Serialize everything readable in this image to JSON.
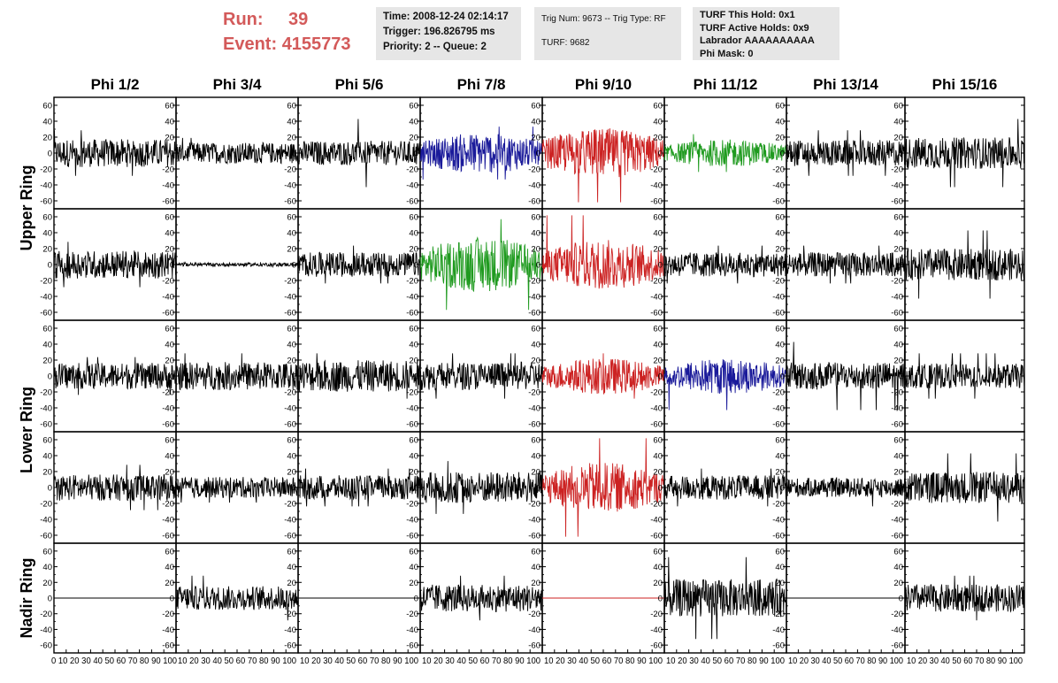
{
  "header": {
    "run_label": "Run:",
    "run_value": "39",
    "event_label": "Event:",
    "event_value": "4155773",
    "time": "Time: 2008-12-24 02:14:17",
    "trigger": "Trigger: 196.826795 ms",
    "priority": "Priority: 2 -- Queue: 2",
    "trig_num": "Trig Num: 9673 -- Trig Type: RF",
    "turf": "TURF: 9682",
    "turf_this_hold": "TURF This Hold: 0x1",
    "turf_active_holds": "TURF Active Holds: 0x9",
    "labrador": "Labrador AAAAAAAAAA",
    "phi_mask": "Phi Mask: 0"
  },
  "colors": {
    "run_text": "#d35a5a",
    "info_bg": "#e6e6e6",
    "black": "#000000",
    "red": "#cc2222",
    "blue": "#1a1a9a",
    "green": "#1e9a1e"
  },
  "chart_data": {
    "type": "line",
    "columns": [
      "Phi 1/2",
      "Phi 3/4",
      "Phi 5/6",
      "Phi 7/8",
      "Phi 9/10",
      "Phi 11/12",
      "Phi 13/14",
      "Phi 15/16"
    ],
    "rows": [
      "Upper Ring",
      "Upper Ring",
      "Lower Ring",
      "Lower Ring",
      "Nadir Ring"
    ],
    "ring_labels": [
      "Upper Ring",
      "Lower Ring",
      "Nadir Ring"
    ],
    "ylim": [
      -70,
      70
    ],
    "yticks": [
      -60,
      -40,
      -20,
      0,
      20,
      40,
      60
    ],
    "xlim": [
      0,
      100
    ],
    "xticks": [
      0,
      10,
      20,
      30,
      40,
      50,
      60,
      70,
      80,
      90,
      100
    ],
    "x_tick_strip": [
      "0 10 20 30 40 50 60 70 80 90 100",
      "10 20 30 40 50 60 70 80 90 100",
      "10 20 30 40 50 60 70 80 90 100",
      "10 20 30 40 50 60 70 80 90 100",
      "10 20 30 40 50 60 70 80 90 100",
      "10 20 30 40 50 60 70 80 90 100",
      "10 20 30 40 50 60 70 80 90 100",
      "10 20 30 40 50 60 70 80 90 100"
    ],
    "panels": [
      [
        {
          "color": "black",
          "amp": 16,
          "peak": 30
        },
        {
          "color": "black",
          "amp": 12,
          "peak": 20
        },
        {
          "color": "black",
          "amp": 14,
          "peak": 45
        },
        {
          "color": "blue",
          "amp": 18,
          "peak": 35
        },
        {
          "color": "red",
          "amp": 22,
          "peak": 65
        },
        {
          "color": "green",
          "amp": 12,
          "peak": 25
        },
        {
          "color": "black",
          "amp": 15,
          "peak": 30
        },
        {
          "color": "black",
          "amp": 18,
          "peak": 45
        }
      ],
      [
        {
          "color": "black",
          "amp": 16,
          "peak": 30
        },
        {
          "color": "black",
          "amp": 2,
          "peak": 3
        },
        {
          "color": "black",
          "amp": 14,
          "peak": 25
        },
        {
          "color": "green",
          "amp": 24,
          "peak": 60
        },
        {
          "color": "red",
          "amp": 22,
          "peak": 65
        },
        {
          "color": "black",
          "amp": 14,
          "peak": 25
        },
        {
          "color": "black",
          "amp": 14,
          "peak": 25
        },
        {
          "color": "black",
          "amp": 18,
          "peak": 45
        }
      ],
      [
        {
          "color": "black",
          "amp": 15,
          "peak": 25
        },
        {
          "color": "black",
          "amp": 16,
          "peak": 30
        },
        {
          "color": "black",
          "amp": 18,
          "peak": 30
        },
        {
          "color": "black",
          "amp": 16,
          "peak": 30
        },
        {
          "color": "red",
          "amp": 16,
          "peak": 30
        },
        {
          "color": "blue",
          "amp": 16,
          "peak": 45
        },
        {
          "color": "black",
          "amp": 16,
          "peak": 45
        },
        {
          "color": "black",
          "amp": 14,
          "peak": 30
        }
      ],
      [
        {
          "color": "black",
          "amp": 15,
          "peak": 30
        },
        {
          "color": "black",
          "amp": 12,
          "peak": 20
        },
        {
          "color": "black",
          "amp": 14,
          "peak": 25
        },
        {
          "color": "black",
          "amp": 18,
          "peak": 35
        },
        {
          "color": "red",
          "amp": 22,
          "peak": 65
        },
        {
          "color": "black",
          "amp": 14,
          "peak": 25
        },
        {
          "color": "black",
          "amp": 11,
          "peak": 25
        },
        {
          "color": "black",
          "amp": 18,
          "peak": 45
        }
      ],
      [
        {
          "color": "black",
          "amp": 0,
          "peak": 0
        },
        {
          "color": "black",
          "amp": 14,
          "peak": 30
        },
        {
          "color": "black",
          "amp": 0,
          "peak": 0
        },
        {
          "color": "black",
          "amp": 16,
          "peak": 30
        },
        {
          "color": "red",
          "amp": 0,
          "peak": 0
        },
        {
          "color": "black",
          "amp": 22,
          "peak": 55
        },
        {
          "color": "black",
          "amp": 0,
          "peak": 0
        },
        {
          "color": "black",
          "amp": 16,
          "peak": 30
        }
      ]
    ]
  }
}
